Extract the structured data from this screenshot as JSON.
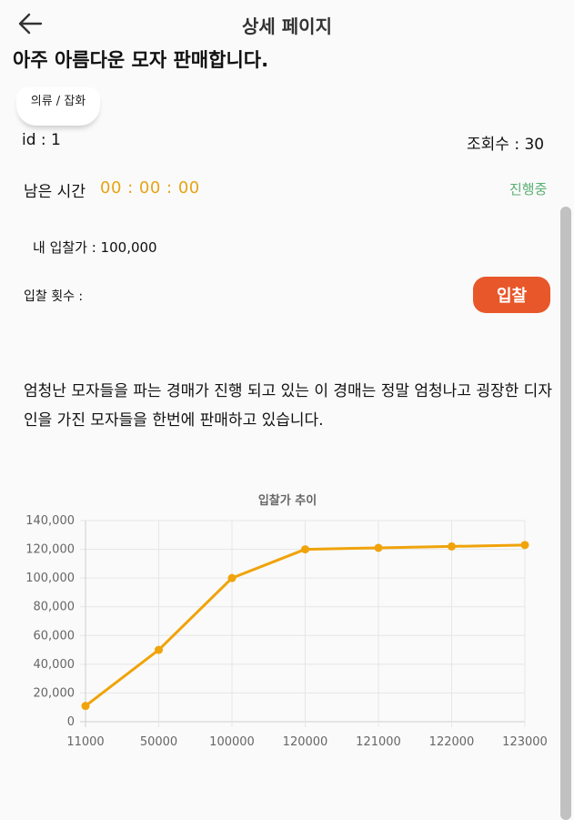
{
  "header": {
    "title": "상세 페이지"
  },
  "product": {
    "title": "아주 아름다운 모자 판매합니다.",
    "category": "의류 / 잡화",
    "id_text": "id : 1",
    "views_text": "조회수 : 30",
    "remaining_label": "남은 시간",
    "timer": "00 : 00 : 00",
    "status": "진행중",
    "my_bid": "내 입찰가 : 100,000",
    "bid_count_label": "입찰 횟수 :",
    "bid_button": "입찰",
    "description": "엄청난 모자들을 파는 경매가 진행 되고 있는 이 경매는 정말 엄청나고 굉장한 디자인을 가진 모자들을 한번에 판매하고 있습니다."
  },
  "colors": {
    "accent": "#e8a317",
    "button": "#e8572a",
    "status": "#5aaf72"
  },
  "icons": {
    "back": "arrow-left-icon"
  },
  "chart_data": {
    "type": "line",
    "title": "입찰가 추이",
    "categories": [
      "11000",
      "50000",
      "100000",
      "120000",
      "121000",
      "122000",
      "123000"
    ],
    "series": [
      {
        "values": [
          11000,
          50000,
          100000,
          120000,
          121000,
          122000,
          123000
        ],
        "color": "#f0a30a"
      }
    ],
    "ylim": [
      0,
      140000
    ],
    "yticks": [
      "0",
      "20,000",
      "40,000",
      "60,000",
      "80,000",
      "100,000",
      "120,000",
      "140,000"
    ],
    "grid": true
  }
}
